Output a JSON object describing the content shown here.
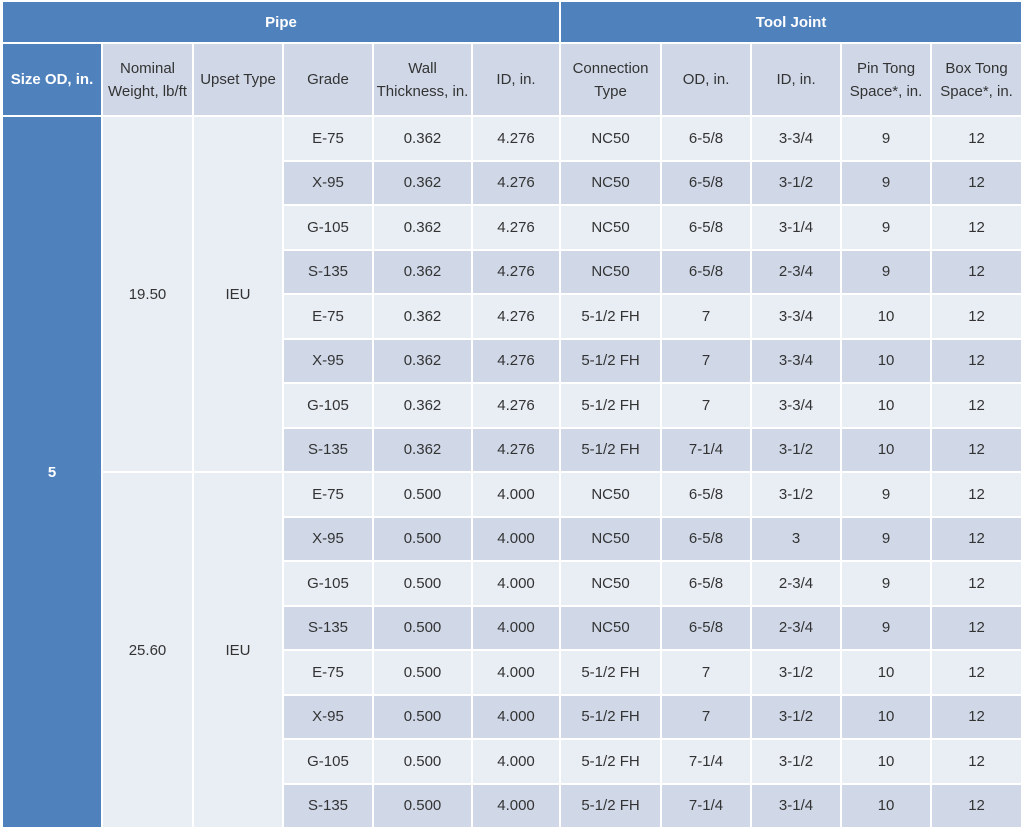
{
  "groups": {
    "pipe": "Pipe",
    "tool_joint": "Tool Joint"
  },
  "headers": {
    "size_od": "Size OD, in.",
    "nominal_weight": "Nominal Weight, lb/ft",
    "upset_type": "Upset Type",
    "grade": "Grade",
    "wall_thickness": "Wall Thickness, in.",
    "pipe_id": "ID, in.",
    "connection_type": "Connection Type",
    "tj_od": "OD, in.",
    "tj_id": "ID, in.",
    "pin_tong": "Pin Tong Space*, in.",
    "box_tong": "Box Tong Space*, in."
  },
  "size_od": "5",
  "blocks": [
    {
      "weight": "19.50",
      "upset": "IEU",
      "rows": [
        [
          "E-75",
          "0.362",
          "4.276",
          "NC50",
          "6-5/8",
          "3-3/4",
          "9",
          "12"
        ],
        [
          "X-95",
          "0.362",
          "4.276",
          "NC50",
          "6-5/8",
          "3-1/2",
          "9",
          "12"
        ],
        [
          "G-105",
          "0.362",
          "4.276",
          "NC50",
          "6-5/8",
          "3-1/4",
          "9",
          "12"
        ],
        [
          "S-135",
          "0.362",
          "4.276",
          "NC50",
          "6-5/8",
          "2-3/4",
          "9",
          "12"
        ],
        [
          "E-75",
          "0.362",
          "4.276",
          "5-1/2 FH",
          "7",
          "3-3/4",
          "10",
          "12"
        ],
        [
          "X-95",
          "0.362",
          "4.276",
          "5-1/2 FH",
          "7",
          "3-3/4",
          "10",
          "12"
        ],
        [
          "G-105",
          "0.362",
          "4.276",
          "5-1/2 FH",
          "7",
          "3-3/4",
          "10",
          "12"
        ],
        [
          "S-135",
          "0.362",
          "4.276",
          "5-1/2 FH",
          "7-1/4",
          "3-1/2",
          "10",
          "12"
        ]
      ]
    },
    {
      "weight": "25.60",
      "upset": "IEU",
      "rows": [
        [
          "E-75",
          "0.500",
          "4.000",
          "NC50",
          "6-5/8",
          "3-1/2",
          "9",
          "12"
        ],
        [
          "X-95",
          "0.500",
          "4.000",
          "NC50",
          "6-5/8",
          "3",
          "9",
          "12"
        ],
        [
          "G-105",
          "0.500",
          "4.000",
          "NC50",
          "6-5/8",
          "2-3/4",
          "9",
          "12"
        ],
        [
          "S-135",
          "0.500",
          "4.000",
          "NC50",
          "6-5/8",
          "2-3/4",
          "9",
          "12"
        ],
        [
          "E-75",
          "0.500",
          "4.000",
          "5-1/2 FH",
          "7",
          "3-1/2",
          "10",
          "12"
        ],
        [
          "X-95",
          "0.500",
          "4.000",
          "5-1/2 FH",
          "7",
          "3-1/2",
          "10",
          "12"
        ],
        [
          "G-105",
          "0.500",
          "4.000",
          "5-1/2 FH",
          "7-1/4",
          "3-1/2",
          "10",
          "12"
        ],
        [
          "S-135",
          "0.500",
          "4.000",
          "5-1/2 FH",
          "7-1/4",
          "3-1/4",
          "10",
          "12"
        ]
      ]
    }
  ]
}
